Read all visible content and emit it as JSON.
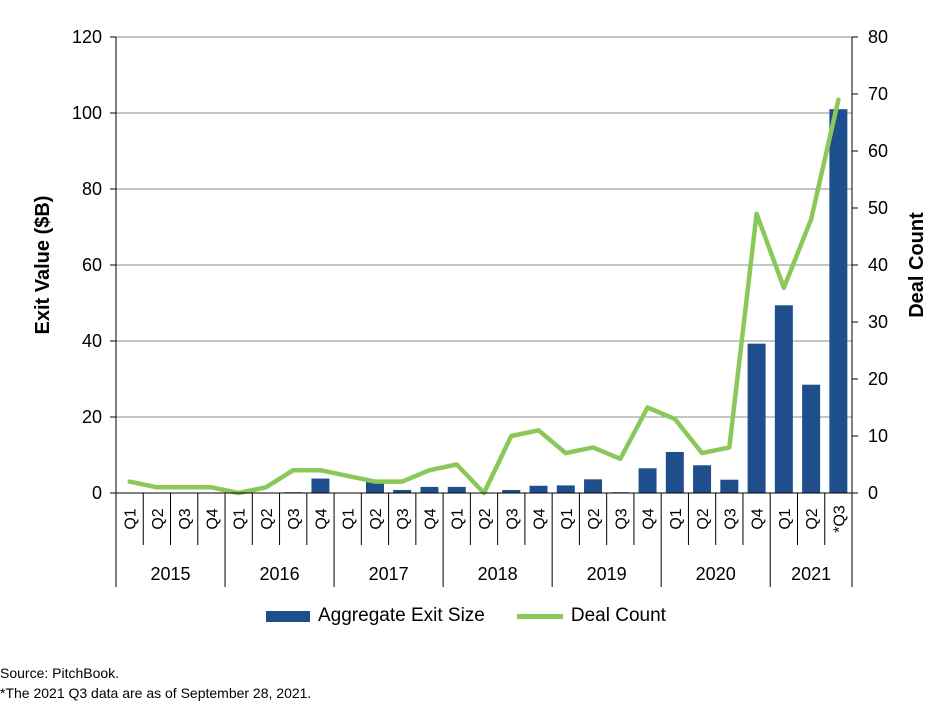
{
  "chart_data": {
    "type": "bar",
    "categories": [
      "Q1",
      "Q2",
      "Q3",
      "Q4",
      "Q1",
      "Q2",
      "Q3",
      "Q4",
      "Q1",
      "Q2",
      "Q3",
      "Q4",
      "Q1",
      "Q2",
      "Q3",
      "Q4",
      "Q1",
      "Q2",
      "Q3",
      "Q4",
      "Q1",
      "Q2",
      "Q3",
      "Q4",
      "Q1",
      "Q2",
      "*Q3"
    ],
    "groups": [
      {
        "label": "2015",
        "count": 4
      },
      {
        "label": "2016",
        "count": 4
      },
      {
        "label": "2017",
        "count": 4
      },
      {
        "label": "2018",
        "count": 4
      },
      {
        "label": "2019",
        "count": 4
      },
      {
        "label": "2020",
        "count": 4
      },
      {
        "label": "2021",
        "count": 3
      }
    ],
    "series": [
      {
        "name": "Aggregate Exit Size",
        "axis": "left",
        "type": "bar",
        "color": "#1F4E8C",
        "values": [
          0.1,
          0,
          0.1,
          0,
          0,
          0.1,
          0.2,
          3.8,
          0,
          2.9,
          0.8,
          1.6,
          1.6,
          0,
          0.8,
          1.9,
          2,
          3.6,
          0.2,
          6.5,
          10.8,
          7.3,
          3.5,
          39.3,
          49.4,
          28.5,
          101
        ]
      },
      {
        "name": "Deal Count",
        "axis": "right",
        "type": "line",
        "color": "#8BC85A",
        "values": [
          2,
          1,
          1,
          1,
          0,
          1,
          4,
          4,
          3,
          2,
          2,
          4,
          5,
          0,
          10,
          11,
          7,
          8,
          6,
          15,
          13,
          7,
          8,
          49,
          36,
          48,
          69
        ]
      }
    ],
    "ylabel": "Exit Value ($B)",
    "ylabel_right": "Deal Count",
    "ylim": [
      0,
      120
    ],
    "ylim_right": [
      0,
      80
    ],
    "yticks": [
      0,
      20,
      40,
      60,
      80,
      100,
      120
    ],
    "yticks_right": [
      0,
      10,
      20,
      30,
      40,
      50,
      60,
      70,
      80
    ],
    "grid": true,
    "legend_position": "bottom"
  },
  "footnotes": {
    "source": "Source: PitchBook.",
    "note": "*The 2021 Q3 data are as of September 28, 2021."
  }
}
